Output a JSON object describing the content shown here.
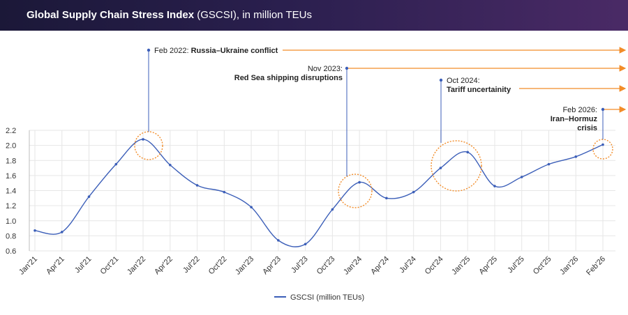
{
  "header": {
    "title_bold": "Global Supply Chain Stress Index",
    "title_rest": " (GSCSI), in million TEUs"
  },
  "chart_data": {
    "type": "line",
    "categories": [
      "Jan'21",
      "Apr'21",
      "Jul'21",
      "Oct'21",
      "Jan'22",
      "Apr'22",
      "Jul'22",
      "Oct'22",
      "Jan'23",
      "Apr'23",
      "Jul'23",
      "Oct'23",
      "Jan'24",
      "Apr'24",
      "Jul'24",
      "Oct'24",
      "Jan'25",
      "Apr'25",
      "Jul'25",
      "Oct'25",
      "Jan'26",
      "Feb'26"
    ],
    "series": [
      {
        "name": "GSCSI (million TEUs)",
        "color": "#3b5eb8",
        "values": [
          0.87,
          0.85,
          1.32,
          1.75,
          2.08,
          1.74,
          1.47,
          1.38,
          1.18,
          0.74,
          0.69,
          1.15,
          1.51,
          1.3,
          1.38,
          1.7,
          1.91,
          1.46,
          1.58,
          1.75,
          1.85,
          2.01
        ]
      }
    ],
    "y_ticks": [
      "0.6",
      "0.8",
      "1.0",
      "1.2",
      "1.4",
      "1.6",
      "1.8",
      "2.0",
      "2.2"
    ],
    "ylim": [
      0.6,
      2.2
    ],
    "grid": true,
    "legend_position": "bottom-center",
    "annotations": [
      {
        "index": 4,
        "date": "Feb 2022:",
        "label": "Russia–Ukraine conflict",
        "highlight_color": "#f28c28"
      },
      {
        "index": 12,
        "date": "Nov 2023:",
        "label": "Red Sea shipping disruptions",
        "highlight_color": "#f28c28"
      },
      {
        "index": 15.5,
        "date": "Oct 2024:",
        "label": "Tariff uncertainity",
        "highlight_color": "#f28c28"
      },
      {
        "index": 21,
        "date": "Feb 2026:",
        "label": "Iran–Hormuz crisis",
        "label_lines": [
          "Iran–Hormuz",
          "crisis"
        ],
        "highlight_color": "#f28c28"
      }
    ]
  }
}
